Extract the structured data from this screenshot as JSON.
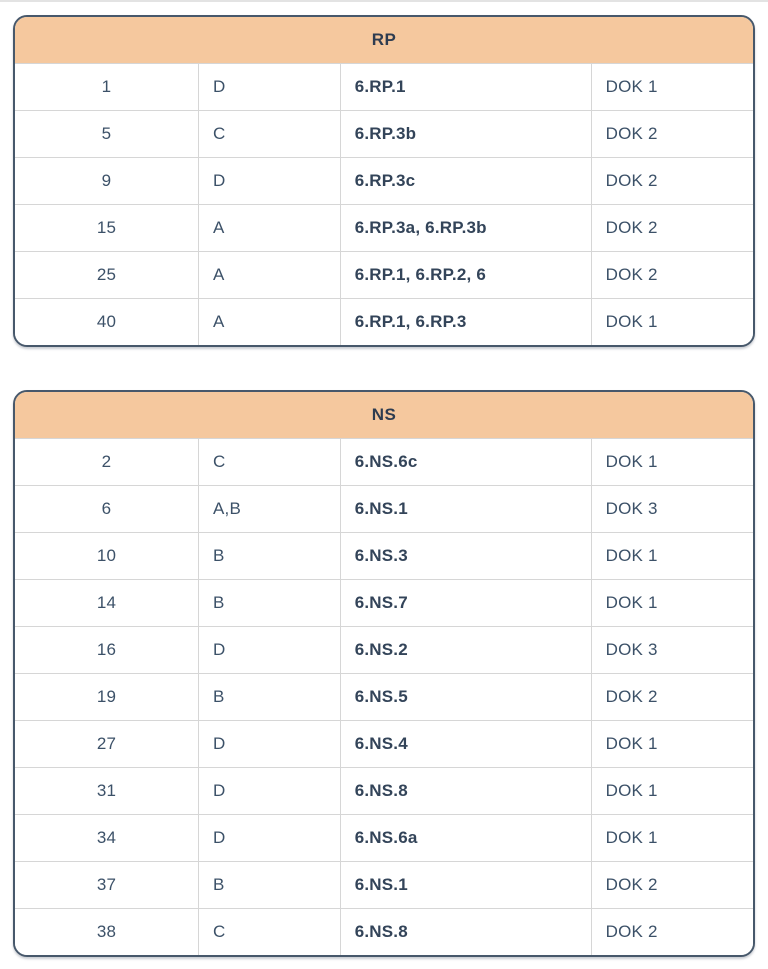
{
  "theme": {
    "header_bg": "#F5C89E",
    "border_color": "#47586B",
    "grid_color": "#D6D6D6",
    "text_color": "#3C5168",
    "bold_text_color": "#334459",
    "header_text_color": "#2E3C50",
    "top_divider_color": "#E3E3E3"
  },
  "tables": [
    {
      "title": "RP",
      "rows": [
        {
          "question": "1",
          "answer": "D",
          "standard": "6.RP.1",
          "dok": "DOK 1"
        },
        {
          "question": "5",
          "answer": "C",
          "standard": "6.RP.3b",
          "dok": "DOK 2"
        },
        {
          "question": "9",
          "answer": "D",
          "standard": "6.RP.3c",
          "dok": "DOK 2"
        },
        {
          "question": "15",
          "answer": "A",
          "standard": "6.RP.3a, 6.RP.3b",
          "dok": "DOK 2"
        },
        {
          "question": "25",
          "answer": "A",
          "standard": "6.RP.1, 6.RP.2, 6",
          "dok": "DOK 2"
        },
        {
          "question": "40",
          "answer": "A",
          "standard": "6.RP.1, 6.RP.3",
          "dok": "DOK 1"
        }
      ]
    },
    {
      "title": "NS",
      "rows": [
        {
          "question": "2",
          "answer": "C",
          "standard": "6.NS.6c",
          "dok": "DOK 1"
        },
        {
          "question": "6",
          "answer": "A,B",
          "standard": "6.NS.1",
          "dok": "DOK 3"
        },
        {
          "question": "10",
          "answer": "B",
          "standard": "6.NS.3",
          "dok": "DOK 1"
        },
        {
          "question": "14",
          "answer": "B",
          "standard": "6.NS.7",
          "dok": "DOK 1"
        },
        {
          "question": "16",
          "answer": "D",
          "standard": "6.NS.2",
          "dok": "DOK 3"
        },
        {
          "question": "19",
          "answer": "B",
          "standard": "6.NS.5",
          "dok": "DOK 2"
        },
        {
          "question": "27",
          "answer": "D",
          "standard": "6.NS.4",
          "dok": "DOK 1"
        },
        {
          "question": "31",
          "answer": "D",
          "standard": "6.NS.8",
          "dok": "DOK 1"
        },
        {
          "question": "34",
          "answer": "D",
          "standard": "6.NS.6a",
          "dok": "DOK 1"
        },
        {
          "question": "37",
          "answer": "B",
          "standard": "6.NS.1",
          "dok": "DOK 2"
        },
        {
          "question": "38",
          "answer": "C",
          "standard": "6.NS.8",
          "dok": "DOK 2"
        }
      ]
    }
  ]
}
